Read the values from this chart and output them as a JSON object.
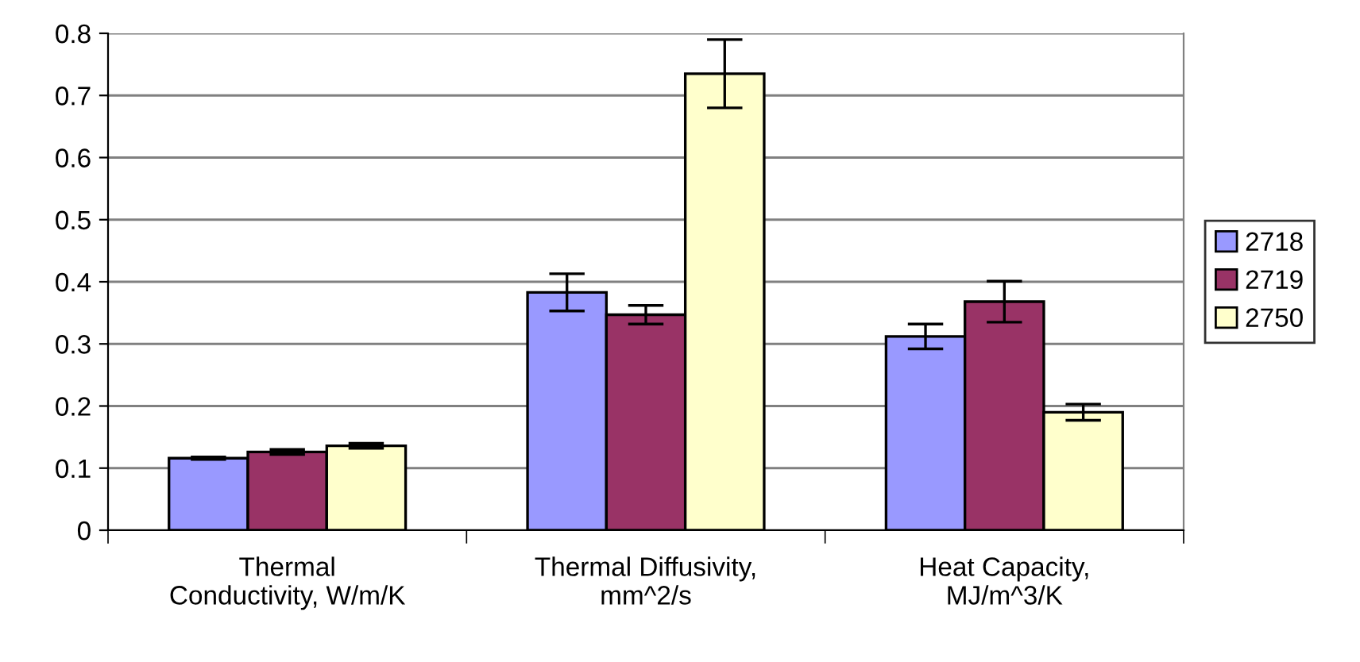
{
  "chart_data": {
    "type": "bar",
    "categories": [
      "Thermal\nConductivity, W/m/K",
      "Thermal Diffusivity,\nmm^2/s",
      "Heat Capacity,\nMJ/m^3/K"
    ],
    "series": [
      {
        "name": "2718",
        "color": "#9999ff",
        "values": [
          0.116,
          0.383,
          0.312
        ],
        "errors": [
          0.002,
          0.03,
          0.02
        ]
      },
      {
        "name": "2719",
        "color": "#993366",
        "values": [
          0.126,
          0.347,
          0.368
        ],
        "errors": [
          0.004,
          0.015,
          0.033
        ]
      },
      {
        "name": "2750",
        "color": "#ffffcc",
        "values": [
          0.136,
          0.735,
          0.19
        ],
        "errors": [
          0.004,
          0.055,
          0.013
        ]
      }
    ],
    "ylim": [
      0,
      0.8
    ],
    "yticks": [
      {
        "value": 0,
        "label": "0"
      },
      0.1,
      0.2,
      0.3,
      0.4,
      0.5,
      0.6,
      0.7,
      0.8
    ],
    "grid": "y",
    "legend": "right"
  }
}
